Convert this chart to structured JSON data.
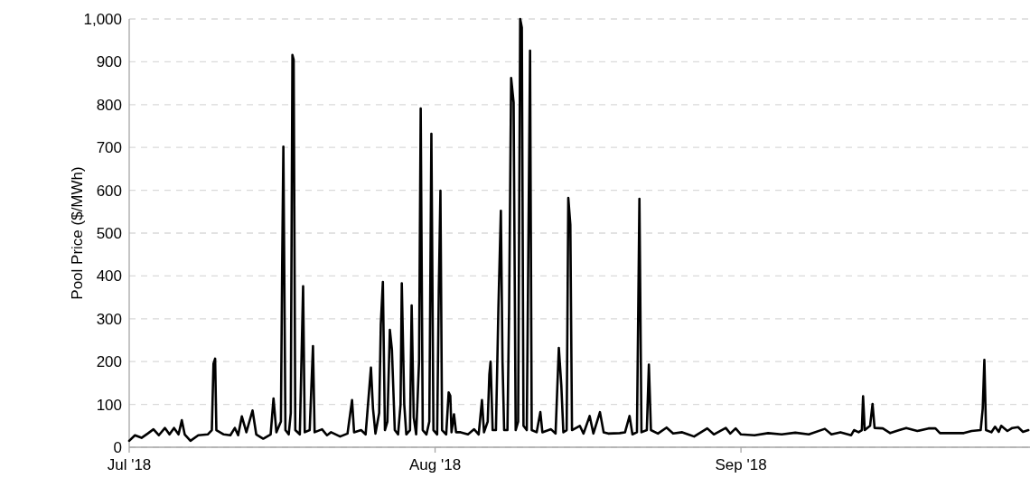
{
  "chart_data": {
    "type": "line",
    "ylabel": "Pool Price ($/MWh)",
    "xlim": [
      "2018-07-01",
      "2018-09-30T07:00"
    ],
    "xticks": [
      {
        "value": "2018-07-01",
        "label": "Jul '18"
      },
      {
        "value": "2018-08-01",
        "label": "Aug '18"
      },
      {
        "value": "2018-09-01",
        "label": "Sep '18"
      }
    ],
    "ylim": [
      0,
      1000
    ],
    "yticks": [
      0,
      100,
      200,
      300,
      400,
      500,
      600,
      700,
      800,
      900,
      {
        "value": 1000,
        "label": "1,000"
      }
    ],
    "grid": "y",
    "marker": "none",
    "line_style": "solid",
    "series": [
      {
        "color": "#000000",
        "x": [
          "2018-07-01T00:00",
          "2018-07-01T14:00",
          "2018-07-02T06:00",
          "2018-07-02T21:00",
          "2018-07-03T11:00",
          "2018-07-04T00:00",
          "2018-07-04T15:00",
          "2018-07-05T02:00",
          "2018-07-05T13:00",
          "2018-07-06T00:00",
          "2018-07-06T08:00",
          "2018-07-06T15:00",
          "2018-07-07T05:00",
          "2018-07-08T00:00",
          "2018-07-08T23:00",
          "2018-07-09T09:00",
          "2018-07-09T13:00",
          "2018-07-09T17:00",
          "2018-07-09T20:00",
          "2018-07-10T14:00",
          "2018-07-11T06:00",
          "2018-07-11T17:00",
          "2018-07-12T01:00",
          "2018-07-12T10:00",
          "2018-07-12T21:00",
          "2018-07-13T12:00",
          "2018-07-13T21:00",
          "2018-07-14T14:00",
          "2018-07-15T08:00",
          "2018-07-15T15:00",
          "2018-07-15T22:00",
          "2018-07-16T09:00",
          "2018-07-16T12:00",
          "2018-07-16T15:00",
          "2018-07-16T20:00",
          "2018-07-17T04:00",
          "2018-07-17T09:00",
          "2018-07-17T13:00",
          "2018-07-17T16:00",
          "2018-07-17T20:00",
          "2018-07-18T07:00",
          "2018-07-18T15:00",
          "2018-07-18T19:00",
          "2018-07-19T07:00",
          "2018-07-19T15:00",
          "2018-07-19T19:00",
          "2018-07-20T13:00",
          "2018-07-21T01:00",
          "2018-07-21T11:00",
          "2018-07-22T09:00",
          "2018-07-23T03:00",
          "2018-07-23T14:00",
          "2018-07-23T19:00",
          "2018-07-24T12:00",
          "2018-07-24T23:00",
          "2018-07-25T12:00",
          "2018-07-25T17:00",
          "2018-07-25T23:00",
          "2018-07-26T08:00",
          "2018-07-26T12:00",
          "2018-07-26T17:00",
          "2018-07-26T22:00",
          "2018-07-27T04:00",
          "2018-07-27T10:00",
          "2018-07-27T15:00",
          "2018-07-27T22:00",
          "2018-07-28T06:00",
          "2018-07-28T12:00",
          "2018-07-28T15:00",
          "2018-07-28T21:00",
          "2018-07-29T02:00",
          "2018-07-29T11:00",
          "2018-07-29T15:00",
          "2018-07-29T20:00",
          "2018-07-30T02:00",
          "2018-07-30T09:00",
          "2018-07-30T13:00",
          "2018-07-30T18:00",
          "2018-07-31T03:00",
          "2018-07-31T10:00",
          "2018-07-31T15:00",
          "2018-07-31T20:00",
          "2018-08-01T05:00",
          "2018-08-01T09:00",
          "2018-08-01T13:00",
          "2018-08-01T17:00",
          "2018-08-02T03:00",
          "2018-08-02T09:00",
          "2018-08-02T13:00",
          "2018-08-02T16:00",
          "2018-08-02T22:00",
          "2018-08-03T03:00",
          "2018-08-03T14:00",
          "2018-08-04T08:00",
          "2018-08-04T23:00",
          "2018-08-05T10:00",
          "2018-08-05T18:00",
          "2018-08-05T23:00",
          "2018-08-06T08:00",
          "2018-08-06T12:00",
          "2018-08-06T15:00",
          "2018-08-06T20:00",
          "2018-08-07T04:00",
          "2018-08-07T10:00",
          "2018-08-07T16:00",
          "2018-08-07T20:00",
          "2018-08-08T00:00",
          "2018-08-08T08:00",
          "2018-08-08T12:00",
          "2018-08-08T17:00",
          "2018-08-08T23:00",
          "2018-08-09T04:00",
          "2018-08-09T10:00",
          "2018-08-09T15:00",
          "2018-08-09T19:00",
          "2018-08-09T23:00",
          "2018-08-10T07:00",
          "2018-08-10T15:00",
          "2018-08-10T19:00",
          "2018-08-11T07:00",
          "2018-08-11T16:00",
          "2018-08-11T21:00",
          "2018-08-12T18:00",
          "2018-08-13T05:00",
          "2018-08-13T13:00",
          "2018-08-13T19:00",
          "2018-08-14T00:00",
          "2018-08-14T08:00",
          "2018-08-14T12:00",
          "2018-08-14T17:00",
          "2018-08-14T21:00",
          "2018-08-15T16:00",
          "2018-08-16T01:00",
          "2018-08-16T16:00",
          "2018-08-17T01:00",
          "2018-08-17T17:00",
          "2018-08-18T02:00",
          "2018-08-18T13:00",
          "2018-08-19T17:00",
          "2018-08-20T06:00",
          "2018-08-20T17:00",
          "2018-08-21T00:00",
          "2018-08-21T11:00",
          "2018-08-21T17:00",
          "2018-08-21T22:00",
          "2018-08-22T11:00",
          "2018-08-22T16:00",
          "2018-08-22T21:00",
          "2018-08-23T14:00",
          "2018-08-24T11:00",
          "2018-08-25T03:00",
          "2018-08-26T01:00",
          "2018-08-27T06:00",
          "2018-08-28T14:00",
          "2018-08-29T06:00",
          "2018-08-30T11:00",
          "2018-08-30T22:00",
          "2018-08-31T11:00",
          "2018-09-01T00:00",
          "2018-09-02T09:00",
          "2018-09-03T18:00",
          "2018-09-05T03:00",
          "2018-09-06T12:00",
          "2018-09-07T21:00",
          "2018-09-09T12:00",
          "2018-09-10T04:00",
          "2018-09-11T02:00",
          "2018-09-12T04:00",
          "2018-09-12T11:00",
          "2018-09-12T22:00",
          "2018-09-13T06:00",
          "2018-09-13T09:00",
          "2018-09-13T13:00",
          "2018-09-14T02:00",
          "2018-09-14T08:00",
          "2018-09-14T13:00",
          "2018-09-15T09:00",
          "2018-09-16T03:00",
          "2018-09-17T01:00",
          "2018-09-17T18:00",
          "2018-09-18T21:00",
          "2018-09-20T00:00",
          "2018-09-20T17:00",
          "2018-09-21T04:00",
          "2018-09-23T14:00",
          "2018-09-24T09:00",
          "2018-09-25T07:00",
          "2018-09-25T12:00",
          "2018-09-25T16:00",
          "2018-09-25T20:00",
          "2018-09-26T09:00",
          "2018-09-26T18:00",
          "2018-09-27T03:00",
          "2018-09-27T09:00",
          "2018-09-28T00:00",
          "2018-09-28T12:00",
          "2018-09-29T02:00",
          "2018-09-29T14:00",
          "2018-09-30T03:00"
        ],
        "values": [
          15,
          28,
          22,
          32,
          42,
          28,
          45,
          30,
          45,
          30,
          63,
          30,
          15,
          28,
          30,
          40,
          195,
          207,
          40,
          30,
          28,
          45,
          28,
          72,
          35,
          86,
          30,
          20,
          30,
          114,
          35,
          60,
          420,
          702,
          40,
          30,
          80,
          916,
          905,
          40,
          30,
          376,
          35,
          40,
          236,
          35,
          42,
          28,
          35,
          25,
          32,
          110,
          35,
          40,
          30,
          186,
          90,
          32,
          80,
          287,
          386,
          40,
          60,
          274,
          228,
          40,
          30,
          100,
          383,
          100,
          30,
          40,
          331,
          70,
          30,
          200,
          791,
          40,
          30,
          60,
          732,
          40,
          30,
          365,
          599,
          40,
          30,
          128,
          120,
          35,
          77,
          35,
          35,
          30,
          42,
          30,
          110,
          35,
          60,
          170,
          200,
          40,
          40,
          325,
          552,
          200,
          40,
          40,
          320,
          862,
          805,
          40,
          60,
          1000,
          980,
          50,
          40,
          926,
          40,
          35,
          82,
          35,
          42,
          32,
          232,
          145,
          35,
          40,
          582,
          520,
          40,
          50,
          32,
          73,
          32,
          82,
          35,
          32,
          33,
          35,
          73,
          30,
          35,
          580,
          35,
          40,
          193,
          40,
          32,
          46,
          32,
          35,
          25,
          44,
          30,
          45,
          32,
          44,
          30,
          28,
          33,
          30,
          34,
          30,
          43,
          30,
          35,
          28,
          40,
          35,
          40,
          119,
          40,
          50,
          101,
          45,
          44,
          33,
          40,
          45,
          38,
          44,
          44,
          33,
          33,
          38,
          40,
          90,
          204,
          40,
          35,
          48,
          36,
          50,
          38,
          45,
          47,
          36,
          40
        ]
      }
    ]
  }
}
